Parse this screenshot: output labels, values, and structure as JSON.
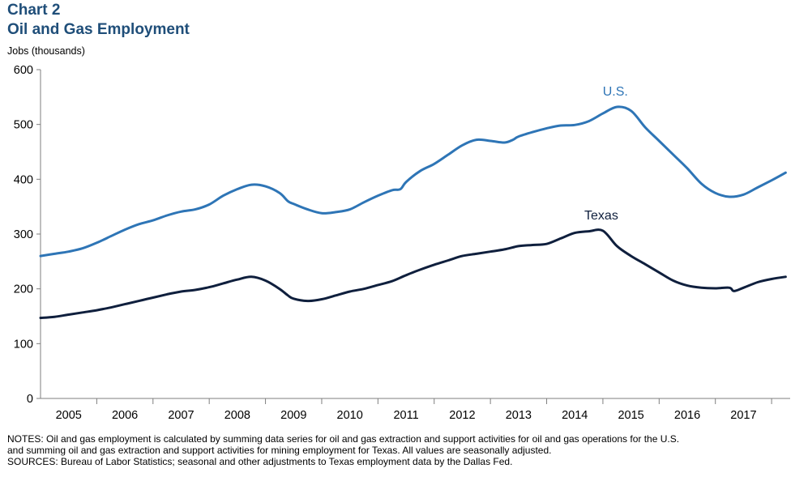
{
  "header": {
    "chart_number": "Chart 2",
    "title": "Oil and Gas Employment",
    "y_unit": "Jobs (thousands)"
  },
  "notes": [
    "NOTES: Oil and gas employment is calculated by summing data series for oil and gas extraction and support activities for oil and gas operations for the U.S.",
    "and summing oil and gas extraction and support activities for mining employment for Texas. All values are seasonally adjusted.",
    "SOURCES: Bureau of Labor Statistics; seasonal and other adjustments to Texas employment data by the Dallas Fed."
  ],
  "colors": {
    "us": "#2e75b6",
    "texas": "#0f1f3d",
    "title": "#1f4e79",
    "axis": "#7f7f7f"
  },
  "chart_data": {
    "type": "line",
    "title": "Oil and Gas Employment",
    "ylabel": "Jobs (thousands)",
    "xlabel": "",
    "ylim": [
      0,
      600
    ],
    "yticks": [
      0,
      100,
      200,
      300,
      400,
      500,
      600
    ],
    "xlim": [
      2004.5,
      2017.83
    ],
    "x_categories": [
      "2005",
      "2006",
      "2007",
      "2008",
      "2009",
      "2010",
      "2011",
      "2012",
      "2013",
      "2014",
      "2015",
      "2016",
      "2017"
    ],
    "grid": false,
    "series": [
      {
        "name": "U.S.",
        "color": "#2e75b6",
        "x": [
          2004.5,
          2004.75,
          2005.0,
          2005.25,
          2005.5,
          2005.75,
          2006.0,
          2006.25,
          2006.5,
          2006.75,
          2007.0,
          2007.25,
          2007.5,
          2007.75,
          2008.0,
          2008.25,
          2008.5,
          2008.75,
          2008.9,
          2009.0,
          2009.25,
          2009.5,
          2009.75,
          2010.0,
          2010.25,
          2010.5,
          2010.75,
          2010.9,
          2011.0,
          2011.25,
          2011.5,
          2011.75,
          2012.0,
          2012.25,
          2012.5,
          2012.75,
          2012.9,
          2013.0,
          2013.25,
          2013.5,
          2013.75,
          2014.0,
          2014.25,
          2014.5,
          2014.75,
          2015.0,
          2015.25,
          2015.5,
          2015.75,
          2016.0,
          2016.25,
          2016.5,
          2016.75,
          2017.0,
          2017.25,
          2017.5,
          2017.75
        ],
        "values": [
          260,
          264,
          268,
          274,
          284,
          296,
          308,
          318,
          325,
          334,
          341,
          345,
          354,
          370,
          382,
          390,
          387,
          375,
          360,
          355,
          345,
          338,
          340,
          345,
          358,
          370,
          380,
          382,
          395,
          415,
          428,
          445,
          462,
          472,
          470,
          467,
          472,
          478,
          486,
          493,
          498,
          499,
          506,
          520,
          532,
          525,
          495,
          470,
          445,
          420,
          392,
          375,
          368,
          372,
          385,
          398,
          412
        ]
      },
      {
        "name": "Texas",
        "color": "#0f1f3d",
        "x": [
          2004.5,
          2004.75,
          2005.0,
          2005.25,
          2005.5,
          2005.75,
          2006.0,
          2006.25,
          2006.5,
          2006.75,
          2007.0,
          2007.25,
          2007.5,
          2007.75,
          2008.0,
          2008.25,
          2008.5,
          2008.75,
          2008.9,
          2009.0,
          2009.25,
          2009.5,
          2009.75,
          2010.0,
          2010.25,
          2010.5,
          2010.75,
          2011.0,
          2011.25,
          2011.5,
          2011.75,
          2012.0,
          2012.25,
          2012.5,
          2012.75,
          2013.0,
          2013.25,
          2013.5,
          2013.75,
          2014.0,
          2014.25,
          2014.5,
          2014.75,
          2015.0,
          2015.25,
          2015.5,
          2015.75,
          2016.0,
          2016.25,
          2016.5,
          2016.75,
          2016.83,
          2017.0,
          2017.25,
          2017.5,
          2017.75
        ],
        "values": [
          147,
          149,
          153,
          157,
          161,
          166,
          172,
          178,
          184,
          190,
          195,
          198,
          203,
          210,
          217,
          222,
          215,
          200,
          188,
          182,
          178,
          181,
          188,
          195,
          200,
          207,
          214,
          225,
          235,
          244,
          252,
          260,
          264,
          268,
          272,
          278,
          280,
          282,
          292,
          302,
          305,
          306,
          278,
          260,
          245,
          230,
          215,
          206,
          202,
          201,
          202,
          196,
          202,
          212,
          218,
          222
        ]
      }
    ],
    "annotations": [
      {
        "text": "U.S.",
        "series": "U.S."
      },
      {
        "text": "Texas",
        "series": "Texas"
      }
    ]
  }
}
